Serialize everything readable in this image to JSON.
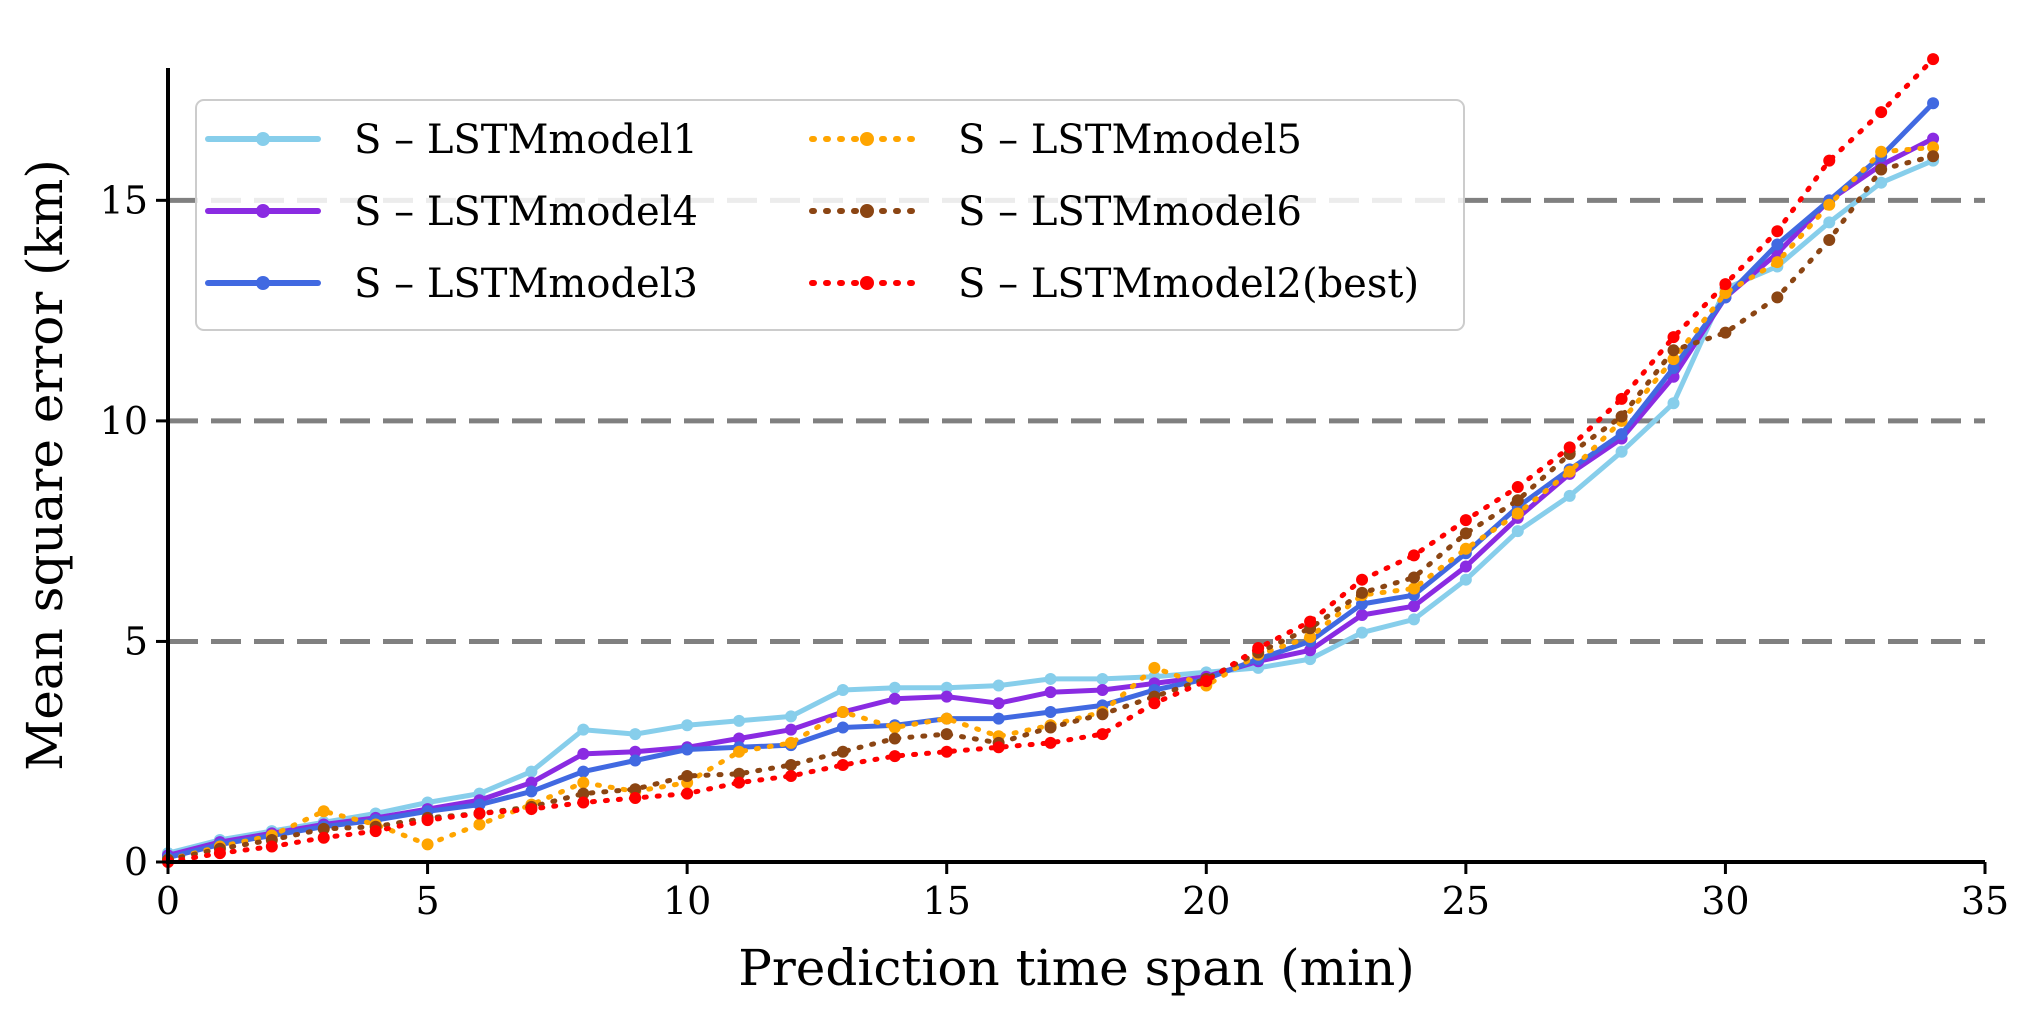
{
  "chart_data": {
    "type": "line",
    "title": "",
    "xlabel": "Prediction time span (min)",
    "ylabel": "Mean square error (km)",
    "xlim": [
      0,
      35
    ],
    "ylim": [
      0,
      18
    ],
    "xticks": [
      0,
      5,
      10,
      15,
      20,
      25,
      30,
      35
    ],
    "yticks": [
      0,
      5,
      10,
      15
    ],
    "hlines": [
      5,
      10,
      15
    ],
    "legend_position": "upper-left",
    "x": [
      0,
      1,
      2,
      3,
      4,
      5,
      6,
      7,
      8,
      9,
      10,
      11,
      12,
      13,
      14,
      15,
      16,
      17,
      18,
      19,
      20,
      21,
      22,
      23,
      24,
      25,
      26,
      27,
      28,
      29,
      30,
      31,
      32,
      33,
      34
    ],
    "series": [
      {
        "name": "S – LSTMmodel1",
        "color": "#87ceeb",
        "style": "solid",
        "values": [
          0.2,
          0.5,
          0.7,
          0.9,
          1.1,
          1.35,
          1.55,
          2.05,
          3.0,
          2.9,
          3.1,
          3.2,
          3.3,
          3.9,
          3.95,
          3.95,
          4.0,
          4.15,
          4.15,
          4.2,
          4.3,
          4.4,
          4.6,
          5.2,
          5.5,
          6.4,
          7.5,
          8.3,
          9.3,
          10.4,
          13.0,
          13.5,
          14.5,
          15.4,
          15.9
        ]
      },
      {
        "name": "S – LSTMmodel4",
        "color": "#8a2be2",
        "style": "solid",
        "values": [
          0.15,
          0.45,
          0.65,
          0.85,
          1.0,
          1.2,
          1.4,
          1.8,
          2.45,
          2.5,
          2.6,
          2.8,
          3.0,
          3.4,
          3.7,
          3.75,
          3.6,
          3.85,
          3.9,
          4.05,
          4.2,
          4.55,
          4.8,
          5.6,
          5.8,
          6.7,
          7.8,
          8.8,
          9.6,
          11.0,
          12.8,
          13.8,
          15.0,
          15.8,
          16.4
        ]
      },
      {
        "name": "S – LSTMmodel3",
        "color": "#4169e1",
        "style": "solid",
        "values": [
          0.1,
          0.4,
          0.6,
          0.8,
          0.95,
          1.15,
          1.3,
          1.6,
          2.05,
          2.3,
          2.55,
          2.6,
          2.65,
          3.05,
          3.1,
          3.25,
          3.25,
          3.4,
          3.55,
          3.9,
          4.15,
          4.6,
          5.0,
          5.85,
          6.05,
          7.0,
          8.05,
          8.9,
          9.7,
          11.2,
          12.8,
          14.0,
          15.0,
          16.0,
          17.2
        ]
      },
      {
        "name": "S – LSTMmodel5",
        "color": "#ffa500",
        "style": "dotted",
        "values": [
          0.05,
          0.35,
          0.6,
          1.15,
          0.85,
          0.4,
          0.85,
          1.3,
          1.8,
          1.6,
          1.8,
          2.5,
          2.7,
          3.4,
          3.05,
          3.25,
          2.85,
          3.1,
          3.4,
          4.4,
          4.0,
          4.7,
          5.1,
          6.05,
          6.2,
          7.1,
          7.9,
          8.85,
          10.0,
          11.4,
          12.9,
          13.6,
          14.9,
          16.1,
          16.2
        ]
      },
      {
        "name": "S – LSTMmodel6",
        "color": "#8b4513",
        "style": "dotted",
        "values": [
          0.05,
          0.3,
          0.5,
          0.75,
          0.8,
          1.0,
          1.1,
          1.25,
          1.55,
          1.65,
          1.95,
          2.0,
          2.2,
          2.5,
          2.8,
          2.9,
          2.7,
          3.05,
          3.35,
          3.75,
          4.15,
          4.75,
          5.3,
          6.1,
          6.45,
          7.45,
          8.2,
          9.25,
          10.1,
          11.6,
          12.0,
          12.8,
          14.1,
          15.7,
          16.0
        ]
      },
      {
        "name": "S – LSTMmodel2(best)",
        "color": "#ff0000",
        "style": "dotted",
        "values": [
          0.0,
          0.2,
          0.35,
          0.55,
          0.7,
          0.95,
          1.1,
          1.2,
          1.35,
          1.45,
          1.55,
          1.8,
          1.95,
          2.2,
          2.4,
          2.5,
          2.6,
          2.7,
          2.9,
          3.6,
          4.1,
          4.85,
          5.45,
          6.4,
          6.95,
          7.75,
          8.5,
          9.4,
          10.5,
          11.9,
          13.1,
          14.3,
          15.9,
          17.0,
          18.2
        ]
      }
    ]
  }
}
